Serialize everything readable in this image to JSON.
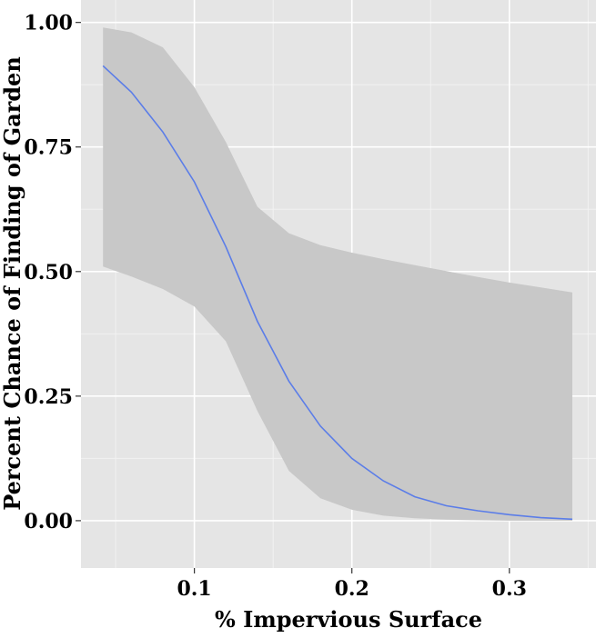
{
  "chart_data": {
    "type": "line",
    "title": "",
    "xlabel": "% Impervious Surface",
    "ylabel": "Percent Chance of Finding of Garden",
    "xlim": [
      0.028,
      0.355
    ],
    "ylim": [
      -0.095,
      1.045
    ],
    "x_ticks": [
      0.1,
      0.2,
      0.3
    ],
    "x_tick_labels": [
      "0.1",
      "0.2",
      "0.3"
    ],
    "y_ticks": [
      0.0,
      0.25,
      0.5,
      0.75,
      1.0
    ],
    "y_tick_labels": [
      "0.00",
      "0.25",
      "0.50",
      "0.75",
      "1.00"
    ],
    "grid": true,
    "legend": "none",
    "colors": {
      "panel": "#e5e5e5",
      "grid_major": "#ffffff",
      "grid_minor": "#f2f2f2",
      "ribbon": "#c8c8c8",
      "line": "#5b7de8"
    },
    "series": [
      {
        "x": [
          0.042,
          0.06,
          0.08,
          0.1,
          0.12,
          0.14,
          0.16,
          0.18,
          0.2,
          0.22,
          0.24,
          0.26,
          0.28,
          0.3,
          0.32,
          0.34
        ],
        "y": [
          0.913,
          0.86,
          0.78,
          0.68,
          0.55,
          0.4,
          0.28,
          0.19,
          0.125,
          0.08,
          0.048,
          0.03,
          0.02,
          0.012,
          0.006,
          0.003
        ],
        "ymin": [
          0.51,
          0.49,
          0.465,
          0.43,
          0.36,
          0.22,
          0.1,
          0.045,
          0.022,
          0.01,
          0.005,
          0.002,
          0.001,
          0.0,
          0.0,
          0.0
        ],
        "ymax": [
          0.99,
          0.98,
          0.95,
          0.87,
          0.76,
          0.63,
          0.577,
          0.553,
          0.538,
          0.525,
          0.513,
          0.501,
          0.489,
          0.478,
          0.468,
          0.458
        ]
      }
    ]
  }
}
